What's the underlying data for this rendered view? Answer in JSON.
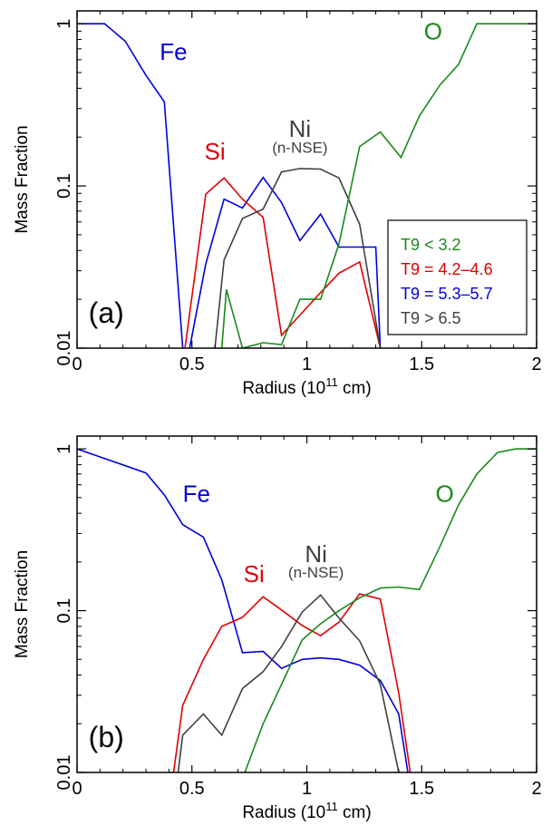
{
  "chart_data": [
    {
      "type": "line",
      "panel_label": "(a)",
      "xlabel": "Radius (10",
      "xlabel_sup": "11",
      "xlabel_tail": " cm)",
      "ylabel": "Mass Fraction",
      "xlim": [
        0,
        2
      ],
      "ylim": [
        0.01,
        1.2
      ],
      "yscale": "log",
      "x_ticks": [
        "0",
        "0.5",
        "1",
        "1.5",
        "2"
      ],
      "y_ticks": [
        "0.01",
        "0.1",
        "1"
      ],
      "grid": false,
      "legend_position": "right",
      "legend": [
        {
          "label": "T9 < 3.2",
          "color": "#1a8a1a"
        },
        {
          "label": "T9 = 4.2–4.6",
          "color": "#e00000"
        },
        {
          "label": "T9 = 5.3–5.7",
          "color": "#0000dd"
        },
        {
          "label": "T9 > 6.5",
          "color": "#404040"
        }
      ],
      "series": [
        {
          "name": "Fe",
          "color": "#0000dd",
          "x": [
            0,
            0.12,
            0.21,
            0.3,
            0.38,
            0.46
          ],
          "y": [
            1.0,
            1.0,
            0.78,
            0.48,
            0.33,
            0.01
          ]
        },
        {
          "name": "Fe",
          "color": "#0000dd",
          "x": [
            0.49,
            0.56,
            0.64,
            0.72,
            0.81,
            0.89,
            0.97,
            1.06,
            1.14,
            1.23,
            1.3,
            1.32
          ],
          "y": [
            0.01,
            0.033,
            0.083,
            0.073,
            0.113,
            0.079,
            0.046,
            0.067,
            0.042,
            0.042,
            0.042,
            0.01
          ]
        },
        {
          "name": "Si",
          "color": "#e00000",
          "x": [
            0.47,
            0.56,
            0.64,
            0.72,
            0.81,
            0.89,
            0.97,
            1.06,
            1.14,
            1.23,
            1.32
          ],
          "y": [
            0.01,
            0.089,
            0.112,
            0.083,
            0.064,
            0.012,
            0.016,
            0.022,
            0.029,
            0.034,
            0.01
          ]
        },
        {
          "name": "Ni",
          "color": "#404040",
          "x": [
            0.6,
            0.64,
            0.72,
            0.81,
            0.89,
            0.97,
            1.06,
            1.14,
            1.23,
            1.32
          ],
          "y": [
            0.01,
            0.035,
            0.063,
            0.072,
            0.122,
            0.128,
            0.127,
            0.112,
            0.058,
            0.01
          ]
        },
        {
          "name": "O",
          "color": "#1a8a1a",
          "x": [
            0.63,
            0.65,
            0.72,
            0.81,
            0.89,
            0.97,
            1.06,
            1.14,
            1.23,
            1.32,
            1.41,
            1.49,
            1.58,
            1.66,
            1.74,
            1.83,
            1.91,
            2.0
          ],
          "y": [
            0.01,
            0.023,
            0.01,
            0.0108,
            0.0105,
            0.02,
            0.02,
            0.044,
            0.175,
            0.215,
            0.15,
            0.27,
            0.42,
            0.56,
            1.0,
            1.0,
            1.0,
            1.0
          ]
        }
      ],
      "labels": [
        {
          "text": "Fe",
          "color": "#0000dd",
          "x": 0.42,
          "y": 0.6
        },
        {
          "text": "Si",
          "color": "#e00000",
          "x": 0.6,
          "y": 0.145
        },
        {
          "text": "Ni",
          "color": "#404040",
          "x": 0.97,
          "y": 0.2
        },
        {
          "text": "(n-NSE)",
          "color": "#404040",
          "x": 0.97,
          "y": 0.16
        },
        {
          "text": "O",
          "color": "#1a8a1a",
          "x": 1.55,
          "y": 0.8
        }
      ]
    },
    {
      "type": "line",
      "panel_label": "(b)",
      "xlabel": "Radius (10",
      "xlabel_sup": "11",
      "xlabel_tail": " cm)",
      "ylabel": "Mass Fraction",
      "xlim": [
        0,
        2
      ],
      "ylim": [
        0.01,
        1.2
      ],
      "yscale": "log",
      "x_ticks": [
        "0",
        "0.5",
        "1",
        "1.5",
        "2"
      ],
      "y_ticks": [
        "0.01",
        "0.1",
        "1"
      ],
      "grid": false,
      "series": [
        {
          "name": "Fe",
          "color": "#0000dd",
          "x": [
            0,
            0.3,
            0.38,
            0.46,
            0.55,
            0.63,
            0.72,
            0.81,
            0.89,
            0.98,
            1.06,
            1.14,
            1.23,
            1.32,
            1.4,
            1.44
          ],
          "y": [
            1.0,
            0.71,
            0.52,
            0.34,
            0.285,
            0.155,
            0.055,
            0.056,
            0.044,
            0.05,
            0.051,
            0.05,
            0.046,
            0.037,
            0.023,
            0.01
          ]
        },
        {
          "name": "Si",
          "color": "#e00000",
          "x": [
            0.42,
            0.46,
            0.55,
            0.63,
            0.72,
            0.81,
            0.89,
            0.98,
            1.06,
            1.14,
            1.23,
            1.32,
            1.4,
            1.45
          ],
          "y": [
            0.01,
            0.026,
            0.05,
            0.08,
            0.091,
            0.122,
            0.101,
            0.081,
            0.07,
            0.085,
            0.127,
            0.118,
            0.031,
            0.01
          ]
        },
        {
          "name": "Ni",
          "color": "#404040",
          "x": [
            0.44,
            0.46,
            0.55,
            0.63,
            0.72,
            0.81,
            0.89,
            0.98,
            1.06,
            1.14,
            1.23,
            1.32,
            1.4
          ],
          "y": [
            0.01,
            0.017,
            0.023,
            0.017,
            0.033,
            0.042,
            0.06,
            0.098,
            0.125,
            0.09,
            0.065,
            0.035,
            0.01
          ]
        },
        {
          "name": "O",
          "color": "#1a8a1a",
          "x": [
            0.73,
            0.81,
            0.89,
            0.98,
            1.06,
            1.14,
            1.23,
            1.32,
            1.4,
            1.49,
            1.58,
            1.66,
            1.74,
            1.83,
            1.91,
            2.0
          ],
          "y": [
            0.01,
            0.02,
            0.035,
            0.066,
            0.083,
            0.1,
            0.12,
            0.138,
            0.14,
            0.135,
            0.25,
            0.45,
            0.7,
            0.95,
            1.0,
            1.0
          ]
        }
      ],
      "labels": [
        {
          "text": "Fe",
          "color": "#0000dd",
          "x": 0.52,
          "y": 0.47
        },
        {
          "text": "Si",
          "color": "#e00000",
          "x": 0.77,
          "y": 0.15
        },
        {
          "text": "Ni",
          "color": "#404040",
          "x": 1.04,
          "y": 0.2
        },
        {
          "text": "(n-NSE)",
          "color": "#404040",
          "x": 1.04,
          "y": 0.16
        },
        {
          "text": "O",
          "color": "#1a8a1a",
          "x": 1.6,
          "y": 0.47
        }
      ]
    }
  ]
}
